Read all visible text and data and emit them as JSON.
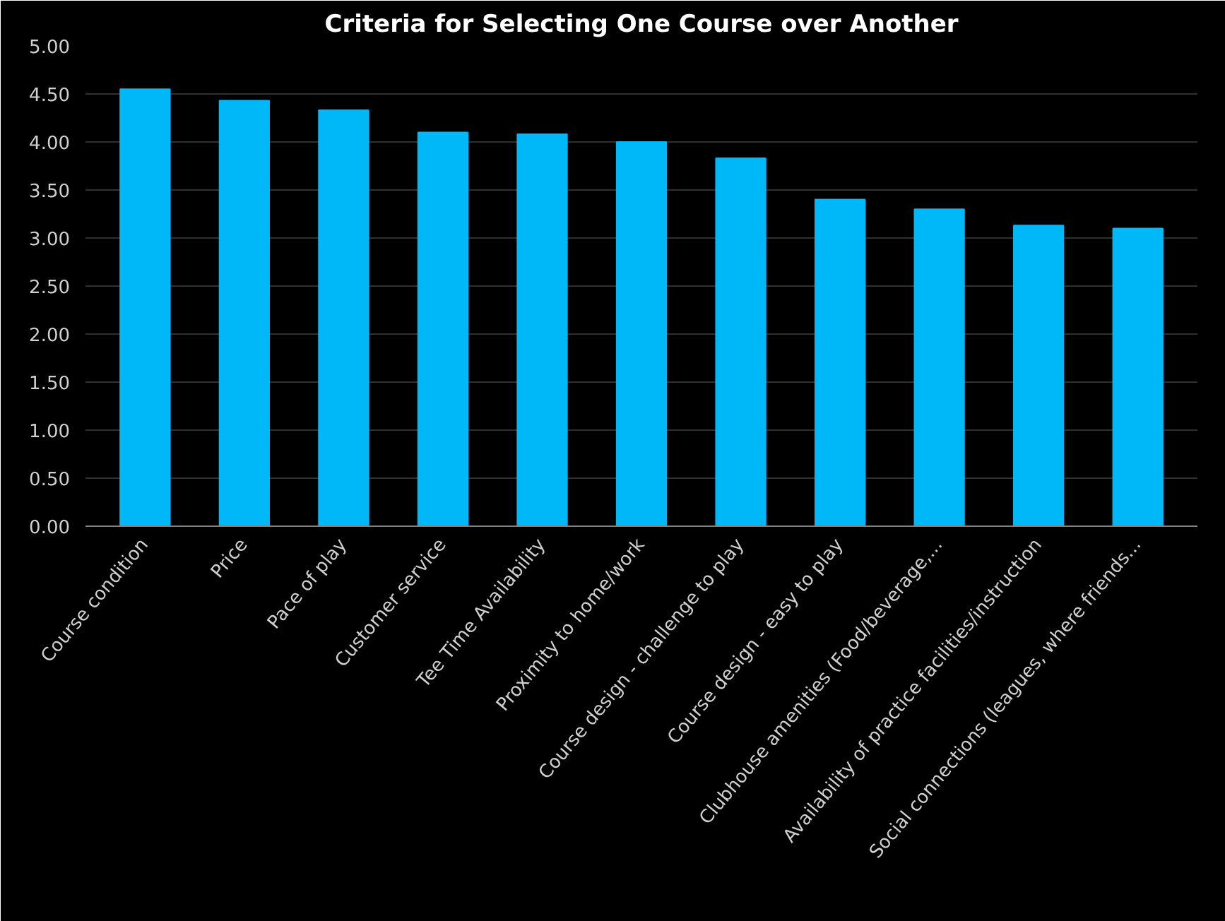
{
  "chart_data": {
    "type": "bar",
    "title": "Criteria for Selecting One Course over Another",
    "categories": [
      "Course condition",
      "Price",
      "Pace of play",
      "Customer service",
      "Tee Time Availability",
      "Proximity to home/work",
      "Course design - challenge to play",
      "Course design - easy to play",
      "Clubhouse amenities (Food/beverage,...",
      "Availability of practice facilities/instruction",
      "Social connections (leagues, where friends..."
    ],
    "values": [
      4.55,
      4.43,
      4.33,
      4.1,
      4.08,
      4.0,
      3.83,
      3.4,
      3.3,
      3.13,
      3.1
    ],
    "color": "#00b8f8",
    "ylim": [
      0,
      5
    ],
    "yticks": [
      {
        "value": 0,
        "label": "0.00"
      },
      {
        "value": 0.5,
        "label": "0.50"
      },
      {
        "value": 1,
        "label": "1.00"
      },
      {
        "value": 1.5,
        "label": "1.50"
      },
      {
        "value": 2,
        "label": "2.00"
      },
      {
        "value": 2.5,
        "label": "2.50"
      },
      {
        "value": 3,
        "label": "3.00"
      },
      {
        "value": 3.5,
        "label": "3.50"
      },
      {
        "value": 4,
        "label": "4.00"
      },
      {
        "value": 4.5,
        "label": "4.50"
      },
      {
        "value": 5,
        "label": "5.00"
      }
    ],
    "grid": "y"
  }
}
